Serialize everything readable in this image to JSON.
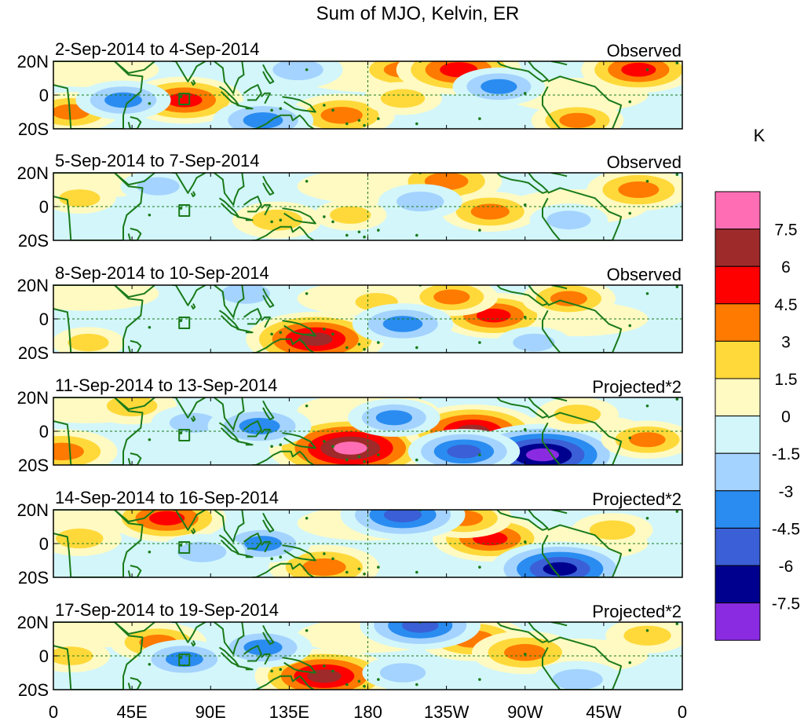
{
  "chart_data": {
    "type": "heatmap",
    "title": "Sum of MJO, Kelvin, ER",
    "colorbar": {
      "unit": "K",
      "tick_labels": [
        "7.5",
        "6",
        "4.5",
        "3",
        "1.5",
        "0",
        "-1.5",
        "-3",
        "-4.5",
        "-6",
        "-7.5"
      ],
      "levels_top_to_bottom": [
        {
          "range": ">7.5",
          "color": "#ff6eb4"
        },
        {
          "range": "6 to 7.5",
          "color": "#9e2a2a"
        },
        {
          "range": "4.5 to 6",
          "color": "#ff0000"
        },
        {
          "range": "3 to 4.5",
          "color": "#ff7a00"
        },
        {
          "range": "1.5 to 3",
          "color": "#ffd93a"
        },
        {
          "range": "0 to 1.5",
          "color": "#fffac2"
        },
        {
          "range": "-1.5 to 0",
          "color": "#d2f6fa"
        },
        {
          "range": "-3 to -1.5",
          "color": "#a4d3ff"
        },
        {
          "range": "-4.5 to -3",
          "color": "#2a8cf0"
        },
        {
          "range": "-6 to -4.5",
          "color": "#3a5fd6"
        },
        {
          "range": "-7.5 to -6",
          "color": "#00008e"
        },
        {
          "range": "<-7.5",
          "color": "#8a2be2"
        }
      ]
    },
    "x_tick_labels": [
      "0",
      "45E",
      "90E",
      "135E",
      "180",
      "135W",
      "90W",
      "45W",
      "0"
    ],
    "y_tick_labels": [
      "20N",
      "0",
      "20S"
    ],
    "panels": [
      {
        "date_range": "2-Sep-2014 to 4-Sep-2014",
        "label": "Observed",
        "anomalies": [
          {
            "lon": 75,
            "lat": -3,
            "value": 5.0
          },
          {
            "lon": 10,
            "lat": -10,
            "value": 3.5
          },
          {
            "lon": 165,
            "lat": -12,
            "value": 4.2
          },
          {
            "lon": 200,
            "lat": 15,
            "value": 3.5
          },
          {
            "lon": 232,
            "lat": 15,
            "value": 5.5
          },
          {
            "lon": 335,
            "lat": 15,
            "value": 4.8
          },
          {
            "lon": 120,
            "lat": -15,
            "value": -3.8
          },
          {
            "lon": 40,
            "lat": -3,
            "value": -3.4
          },
          {
            "lon": 255,
            "lat": 5,
            "value": -3.2
          },
          {
            "lon": 200,
            "lat": -2,
            "value": 2.2
          },
          {
            "lon": 300,
            "lat": -15,
            "value": 3.2
          },
          {
            "lon": 140,
            "lat": 15,
            "value": -3.0
          }
        ]
      },
      {
        "date_range": "5-Sep-2014 to 7-Sep-2014",
        "label": "Observed",
        "anomalies": [
          {
            "lon": 225,
            "lat": 15,
            "value": 4.5
          },
          {
            "lon": 250,
            "lat": -3,
            "value": 3.6
          },
          {
            "lon": 335,
            "lat": 10,
            "value": 4.0
          },
          {
            "lon": 128,
            "lat": -8,
            "value": 3.0
          },
          {
            "lon": 210,
            "lat": 3,
            "value": -2.6
          },
          {
            "lon": 60,
            "lat": 12,
            "value": -2.0
          },
          {
            "lon": 295,
            "lat": -8,
            "value": -2.2
          },
          {
            "lon": 15,
            "lat": 5,
            "value": 1.8
          },
          {
            "lon": 170,
            "lat": -5,
            "value": 1.8
          }
        ]
      },
      {
        "date_range": "8-Sep-2014 to 10-Sep-2014",
        "label": "Observed",
        "anomalies": [
          {
            "lon": 150,
            "lat": -12,
            "value": 6.5
          },
          {
            "lon": 252,
            "lat": 2,
            "value": 4.7
          },
          {
            "lon": 228,
            "lat": 13,
            "value": 3.2
          },
          {
            "lon": 185,
            "lat": 10,
            "value": 2.0
          },
          {
            "lon": 200,
            "lat": -3,
            "value": -3.8
          },
          {
            "lon": 295,
            "lat": 12,
            "value": 3.3
          },
          {
            "lon": 110,
            "lat": 15,
            "value": -2.8
          },
          {
            "lon": 275,
            "lat": -14,
            "value": -1.9
          },
          {
            "lon": 20,
            "lat": -14,
            "value": 1.8
          }
        ]
      },
      {
        "date_range": "11-Sep-2014 to 13-Sep-2014",
        "label": "Projected*2",
        "anomalies": [
          {
            "lon": 170,
            "lat": -10,
            "value": 8.2
          },
          {
            "lon": 240,
            "lat": 0,
            "value": 6.3
          },
          {
            "lon": 280,
            "lat": -14,
            "value": -8.0
          },
          {
            "lon": 235,
            "lat": -12,
            "value": -4.6
          },
          {
            "lon": 5,
            "lat": -12,
            "value": 4.5
          },
          {
            "lon": 45,
            "lat": 15,
            "value": 3.0
          },
          {
            "lon": 80,
            "lat": 5,
            "value": -2.6
          },
          {
            "lon": 118,
            "lat": 3,
            "value": -4.0
          },
          {
            "lon": 340,
            "lat": -5,
            "value": 3.2
          },
          {
            "lon": 300,
            "lat": 10,
            "value": 2.5
          },
          {
            "lon": 195,
            "lat": 8,
            "value": -3.2
          }
        ]
      },
      {
        "date_range": "14-Sep-2014 to 16-Sep-2014",
        "label": "Projected*2",
        "anomalies": [
          {
            "lon": 65,
            "lat": 15,
            "value": 5.0
          },
          {
            "lon": 250,
            "lat": 3,
            "value": 4.8
          },
          {
            "lon": 235,
            "lat": 15,
            "value": 3.5
          },
          {
            "lon": 155,
            "lat": -14,
            "value": 4.5
          },
          {
            "lon": 290,
            "lat": -15,
            "value": -6.5
          },
          {
            "lon": 200,
            "lat": 17,
            "value": -5.5
          },
          {
            "lon": 120,
            "lat": 0,
            "value": -3.4
          },
          {
            "lon": 85,
            "lat": -5,
            "value": -2.8
          },
          {
            "lon": 15,
            "lat": 3,
            "value": 2.6
          },
          {
            "lon": 320,
            "lat": 8,
            "value": 2.4
          }
        ]
      },
      {
        "date_range": "17-Sep-2014 to 19-Sep-2014",
        "label": "Projected*2",
        "anomalies": [
          {
            "lon": 155,
            "lat": -12,
            "value": 6.5
          },
          {
            "lon": 240,
            "lat": 10,
            "value": 4.4
          },
          {
            "lon": 270,
            "lat": 2,
            "value": 4.2
          },
          {
            "lon": 60,
            "lat": 8,
            "value": 3.5
          },
          {
            "lon": 210,
            "lat": 18,
            "value": -5.2
          },
          {
            "lon": 75,
            "lat": -2,
            "value": -3.4
          },
          {
            "lon": 120,
            "lat": 5,
            "value": -3.6
          },
          {
            "lon": 300,
            "lat": -14,
            "value": -3.0
          },
          {
            "lon": 340,
            "lat": 12,
            "value": 2.6
          },
          {
            "lon": 200,
            "lat": -10,
            "value": -2.4
          },
          {
            "lon": 10,
            "lat": 0,
            "value": 2.2
          }
        ]
      }
    ]
  },
  "colors": {
    "coastline": "#1a7a1a",
    "reference_line": "#1a7a1a",
    "frame": "#000000"
  }
}
